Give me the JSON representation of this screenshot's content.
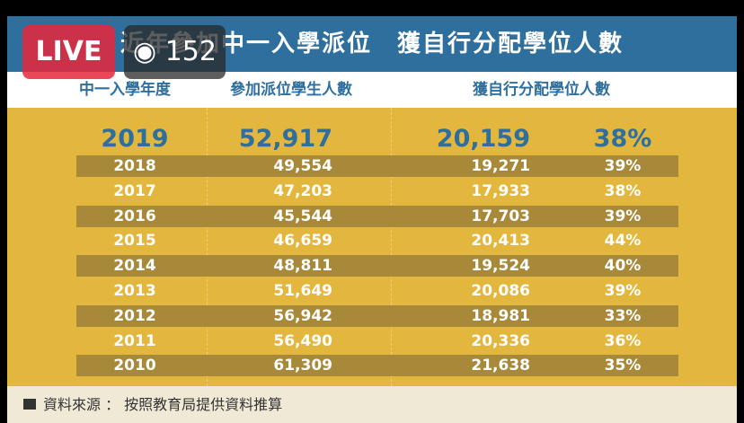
{
  "header": {
    "title": "近年參加中一入學派位　獲自行分配學位人數"
  },
  "overlay": {
    "live": "LIVE",
    "viewers": "152"
  },
  "table": {
    "columns": [
      "中一入學年度",
      "參加派位學生人數",
      "獲自行分配學位人數"
    ],
    "highlight": [
      "2019",
      "52,917",
      "20,159",
      "38%"
    ],
    "rows": [
      [
        "2018",
        "49,554",
        "19,271",
        "39%"
      ],
      [
        "2017",
        "47,203",
        "17,933",
        "38%"
      ],
      [
        "2016",
        "45,544",
        "17,703",
        "39%"
      ],
      [
        "2015",
        "46,659",
        "20,413",
        "44%"
      ],
      [
        "2014",
        "48,811",
        "19,524",
        "40%"
      ],
      [
        "2013",
        "51,649",
        "20,086",
        "39%"
      ],
      [
        "2012",
        "56,942",
        "18,981",
        "33%"
      ],
      [
        "2011",
        "56,490",
        "20,336",
        "36%"
      ],
      [
        "2010",
        "61,309",
        "21,638",
        "35%"
      ]
    ]
  },
  "footer": {
    "source": "資料來源 ： 按照教育局提供資料推算"
  }
}
